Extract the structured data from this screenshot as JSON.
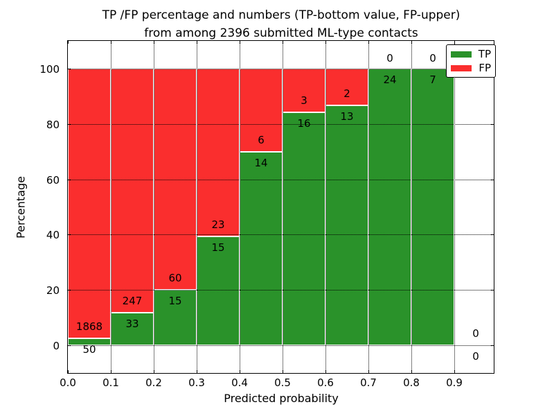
{
  "chart_data": {
    "type": "bar",
    "stacked": "percent",
    "title_line1": "TP /FP percentage and numbers (TP-bottom value, FP-upper)",
    "title_line2": "from among 2396 submitted ML-type contacts",
    "xlabel": "Predicted probability",
    "ylabel": "Percentage",
    "total_contacts": 2396,
    "bin_width": 0.1,
    "x_tick_labels": [
      "0.0",
      "0.1",
      "0.2",
      "0.3",
      "0.4",
      "0.5",
      "0.6",
      "0.7",
      "0.8",
      "0.9"
    ],
    "y_ticks": [
      0,
      20,
      40,
      60,
      80,
      100
    ],
    "ylim": [
      -10,
      110
    ],
    "xlim": [
      0.0,
      0.992
    ],
    "grid": {
      "style": "dotted",
      "color": "#000000"
    },
    "bins": [
      {
        "range": "0.0-0.1",
        "tp": 50,
        "fp": 1868,
        "tp_percent": 2.6
      },
      {
        "range": "0.1-0.2",
        "tp": 33,
        "fp": 247,
        "tp_percent": 11.8
      },
      {
        "range": "0.2-0.3",
        "tp": 15,
        "fp": 60,
        "tp_percent": 20.0
      },
      {
        "range": "0.3-0.4",
        "tp": 15,
        "fp": 23,
        "tp_percent": 39.5
      },
      {
        "range": "0.4-0.5",
        "tp": 14,
        "fp": 6,
        "tp_percent": 70.0
      },
      {
        "range": "0.5-0.6",
        "tp": 16,
        "fp": 3,
        "tp_percent": 84.2
      },
      {
        "range": "0.6-0.7",
        "tp": 13,
        "fp": 2,
        "tp_percent": 86.7
      },
      {
        "range": "0.7-0.8",
        "tp": 24,
        "fp": 0,
        "tp_percent": 100.0
      },
      {
        "range": "0.8-0.9",
        "tp": 7,
        "fp": 0,
        "tp_percent": 100.0
      },
      {
        "range": "0.9-1.0",
        "tp": 0,
        "fp": 0,
        "tp_percent": null
      }
    ],
    "series": [
      {
        "name": "TP",
        "color": "#2a922a",
        "counts": [
          50,
          33,
          15,
          15,
          14,
          16,
          13,
          24,
          7,
          0
        ]
      },
      {
        "name": "FP",
        "color": "#fa2e2e",
        "counts": [
          1868,
          247,
          60,
          23,
          6,
          3,
          2,
          0,
          0,
          0
        ]
      }
    ],
    "legend": {
      "position": "upper right",
      "entries": [
        {
          "label": "TP",
          "color": "#2a922a"
        },
        {
          "label": "FP",
          "color": "#fa2e2e"
        }
      ]
    }
  }
}
